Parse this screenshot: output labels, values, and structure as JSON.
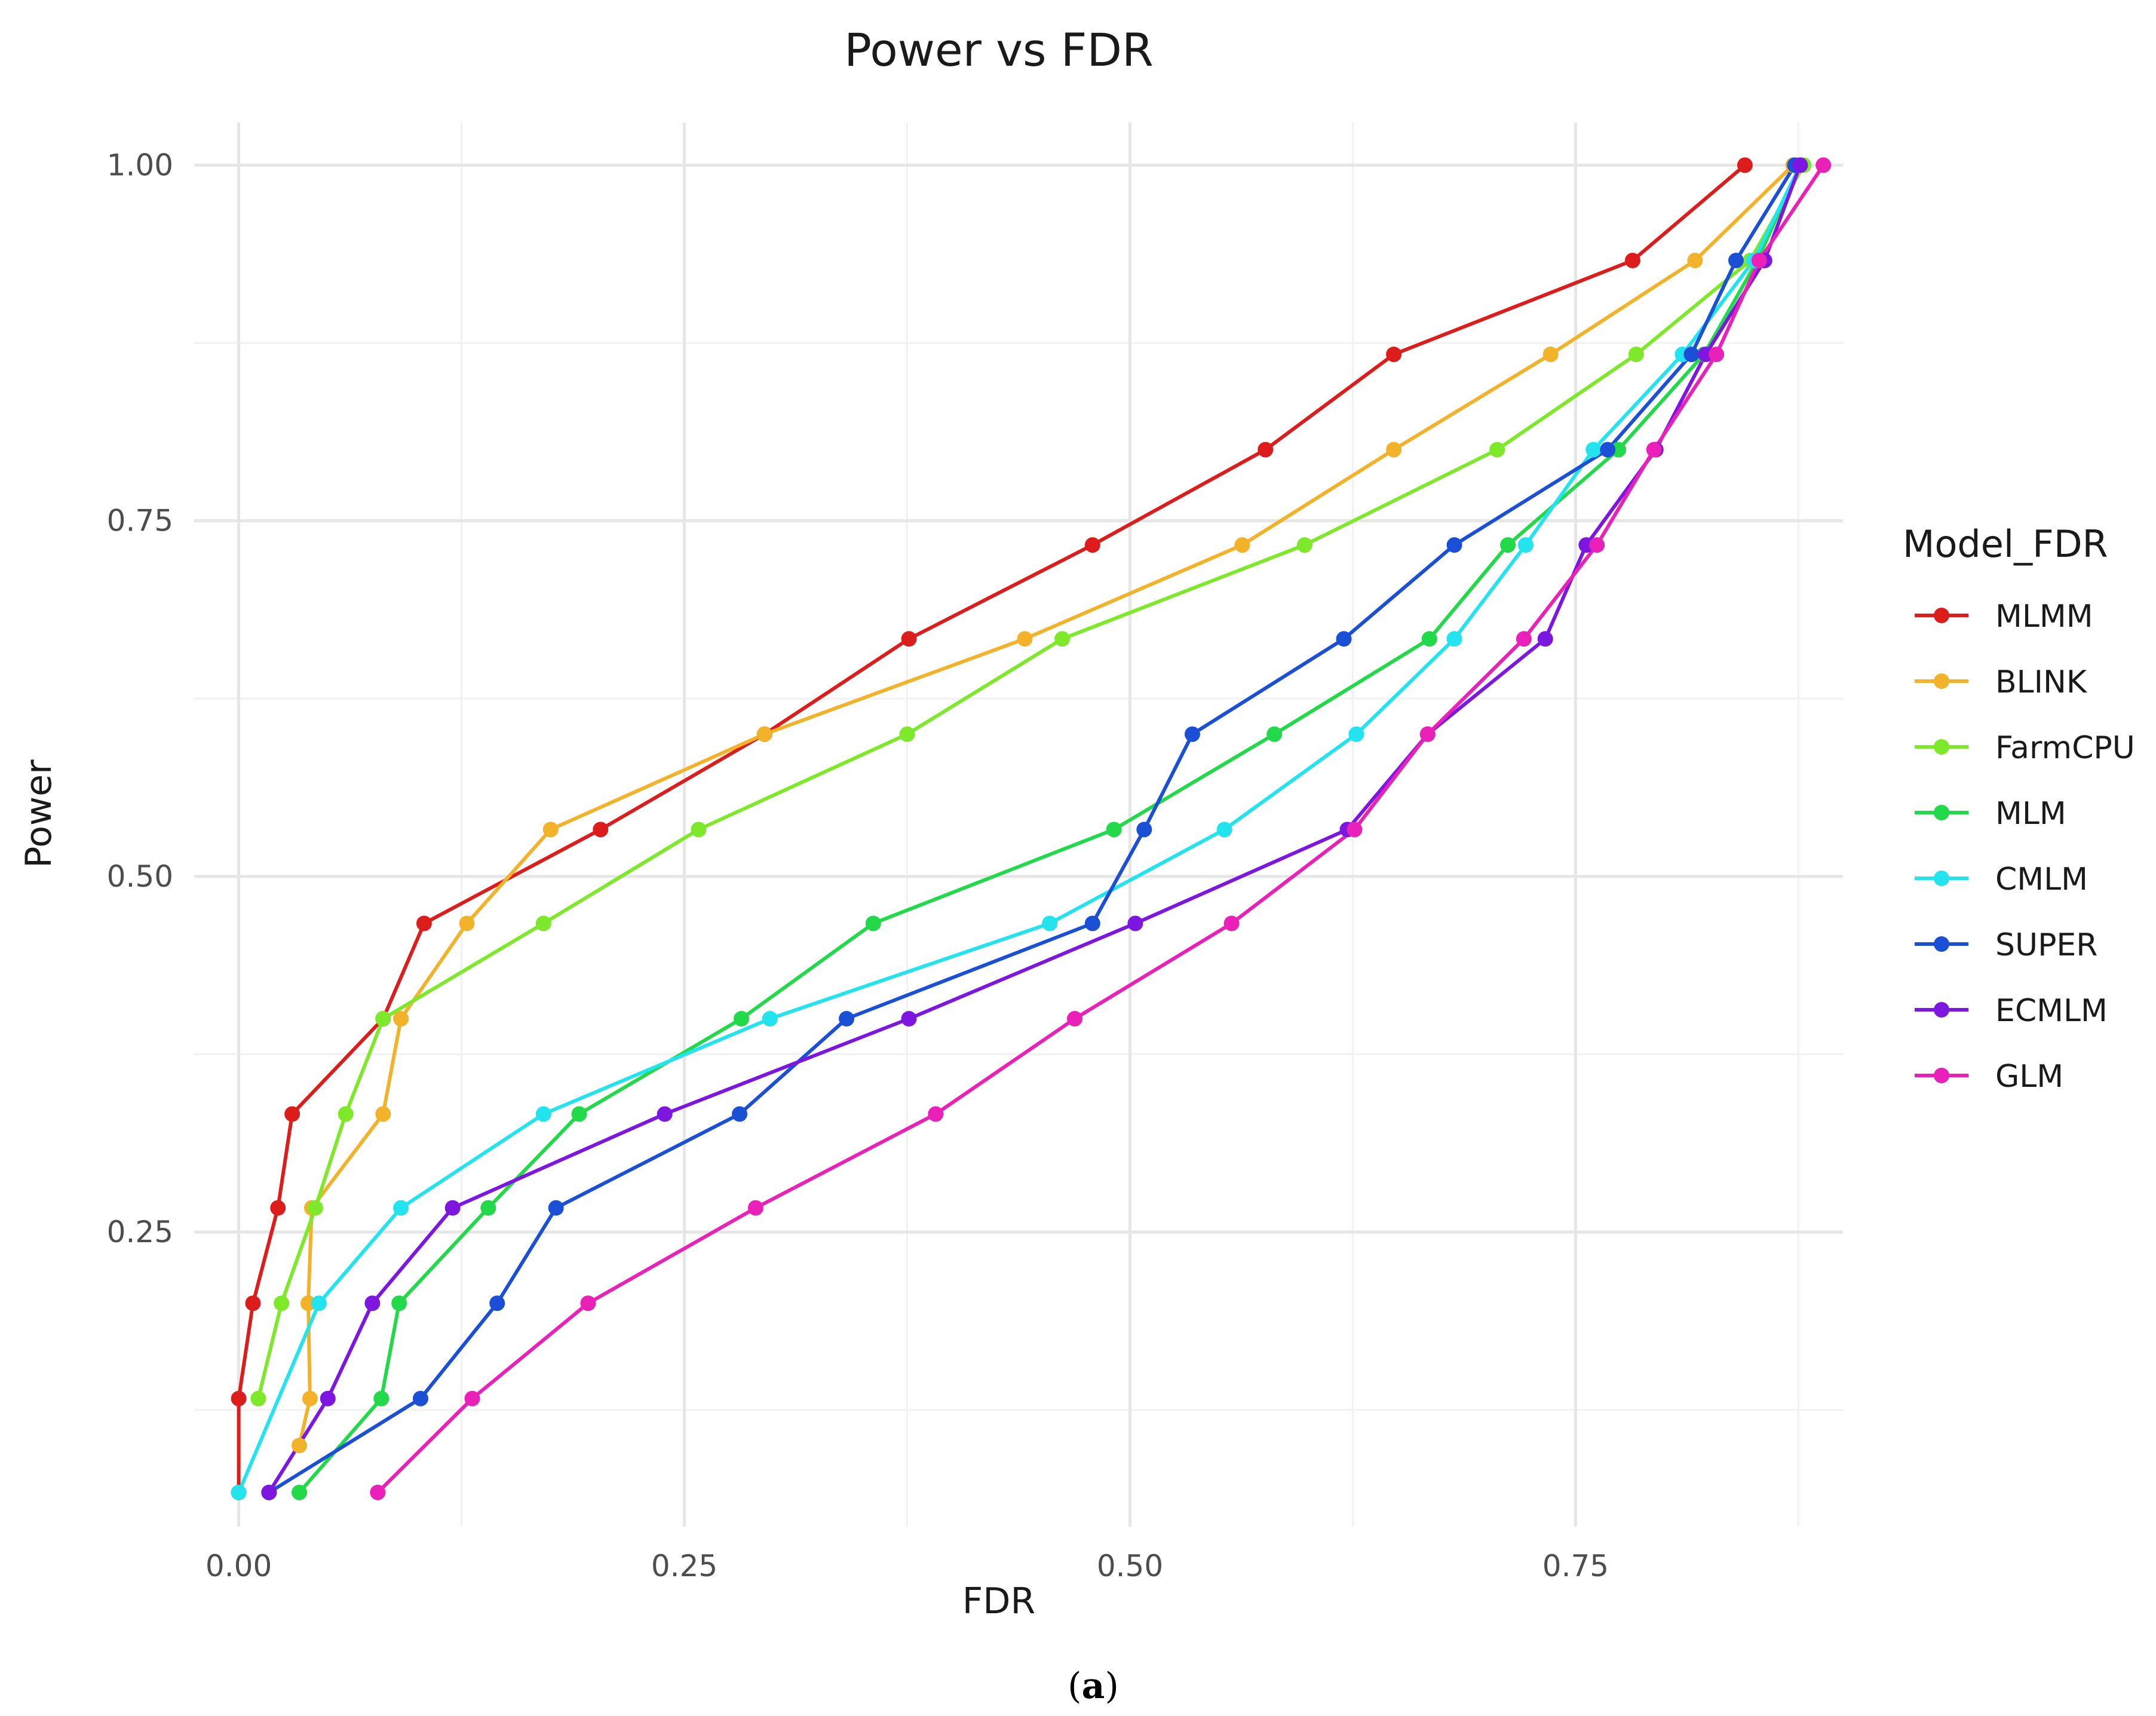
{
  "chart_data": {
    "type": "line",
    "title": "Power vs FDR",
    "xlabel": "FDR",
    "ylabel": "Power",
    "xlim": [
      -0.025,
      0.9
    ],
    "ylim": [
      0.043,
      1.03
    ],
    "xticks": [
      0,
      0.25,
      0.5,
      0.75
    ],
    "xtick_labels": [
      "0.00",
      "0.25",
      "0.50",
      "0.75"
    ],
    "yticks": [
      0.25,
      0.5,
      0.75,
      1.0
    ],
    "ytick_labels": [
      "0.25",
      "0.50",
      "0.75",
      "1.00"
    ],
    "grid": true,
    "legend_title": "Model_FDR",
    "legend_position": "right",
    "caption": {
      "open": "(",
      "letter": "a",
      "close": ")"
    },
    "series": [
      {
        "name": "MLMM",
        "color": "#dd1c1c",
        "points": [
          [
            0.0,
            0.067
          ],
          [
            0.0,
            0.133
          ],
          [
            0.008,
            0.2
          ],
          [
            0.022,
            0.267
          ],
          [
            0.03,
            0.333
          ],
          [
            0.081,
            0.4
          ],
          [
            0.104,
            0.467
          ],
          [
            0.203,
            0.533
          ],
          [
            0.295,
            0.6
          ],
          [
            0.376,
            0.667
          ],
          [
            0.479,
            0.733
          ],
          [
            0.576,
            0.8
          ],
          [
            0.648,
            0.867
          ],
          [
            0.782,
            0.933
          ],
          [
            0.845,
            1.0
          ]
        ]
      },
      {
        "name": "BLINK",
        "color": "#f2b229",
        "points": [
          [
            0.034,
            0.1
          ],
          [
            0.04,
            0.133
          ],
          [
            0.039,
            0.2
          ],
          [
            0.041,
            0.267
          ],
          [
            0.081,
            0.333
          ],
          [
            0.091,
            0.4
          ],
          [
            0.128,
            0.467
          ],
          [
            0.175,
            0.533
          ],
          [
            0.295,
            0.6
          ],
          [
            0.441,
            0.667
          ],
          [
            0.563,
            0.733
          ],
          [
            0.648,
            0.8
          ],
          [
            0.736,
            0.867
          ],
          [
            0.817,
            0.933
          ],
          [
            0.872,
            1.0
          ]
        ]
      },
      {
        "name": "FarmCPU",
        "color": "#7ee82a",
        "points": [
          [
            0.011,
            0.133
          ],
          [
            0.024,
            0.2
          ],
          [
            0.043,
            0.267
          ],
          [
            0.06,
            0.333
          ],
          [
            0.081,
            0.4
          ],
          [
            0.171,
            0.467
          ],
          [
            0.258,
            0.533
          ],
          [
            0.375,
            0.6
          ],
          [
            0.462,
            0.667
          ],
          [
            0.598,
            0.733
          ],
          [
            0.706,
            0.8
          ],
          [
            0.784,
            0.867
          ],
          [
            0.848,
            0.933
          ],
          [
            0.878,
            1.0
          ]
        ]
      },
      {
        "name": "MLM",
        "color": "#22d94a",
        "points": [
          [
            0.034,
            0.067
          ],
          [
            0.08,
            0.133
          ],
          [
            0.09,
            0.2
          ],
          [
            0.14,
            0.267
          ],
          [
            0.191,
            0.333
          ],
          [
            0.282,
            0.4
          ],
          [
            0.356,
            0.467
          ],
          [
            0.491,
            0.533
          ],
          [
            0.581,
            0.6
          ],
          [
            0.668,
            0.667
          ],
          [
            0.712,
            0.733
          ],
          [
            0.774,
            0.8
          ],
          [
            0.822,
            0.867
          ],
          [
            0.852,
            0.933
          ],
          [
            0.876,
            1.0
          ]
        ]
      },
      {
        "name": "CMLM",
        "color": "#22e3ee",
        "points": [
          [
            0.0,
            0.067
          ],
          [
            0.045,
            0.2
          ],
          [
            0.091,
            0.267
          ],
          [
            0.171,
            0.333
          ],
          [
            0.298,
            0.4
          ],
          [
            0.455,
            0.467
          ],
          [
            0.553,
            0.533
          ],
          [
            0.627,
            0.6
          ],
          [
            0.682,
            0.667
          ],
          [
            0.722,
            0.733
          ],
          [
            0.76,
            0.8
          ],
          [
            0.81,
            0.867
          ],
          [
            0.85,
            0.933
          ],
          [
            0.876,
            1.0
          ]
        ]
      },
      {
        "name": "SUPER",
        "color": "#1a4fd6",
        "points": [
          [
            0.017,
            0.067
          ],
          [
            0.102,
            0.133
          ],
          [
            0.145,
            0.2
          ],
          [
            0.178,
            0.267
          ],
          [
            0.281,
            0.333
          ],
          [
            0.341,
            0.4
          ],
          [
            0.479,
            0.467
          ],
          [
            0.508,
            0.533
          ],
          [
            0.535,
            0.6
          ],
          [
            0.62,
            0.667
          ],
          [
            0.682,
            0.733
          ],
          [
            0.768,
            0.8
          ],
          [
            0.815,
            0.867
          ],
          [
            0.84,
            0.933
          ],
          [
            0.873,
            1.0
          ]
        ]
      },
      {
        "name": "ECMLM",
        "color": "#7d17e0",
        "points": [
          [
            0.017,
            0.067
          ],
          [
            0.05,
            0.133
          ],
          [
            0.075,
            0.2
          ],
          [
            0.12,
            0.267
          ],
          [
            0.239,
            0.333
          ],
          [
            0.376,
            0.4
          ],
          [
            0.503,
            0.467
          ],
          [
            0.622,
            0.533
          ],
          [
            0.667,
            0.6
          ],
          [
            0.733,
            0.667
          ],
          [
            0.756,
            0.733
          ],
          [
            0.795,
            0.8
          ],
          [
            0.823,
            0.867
          ],
          [
            0.856,
            0.933
          ],
          [
            0.876,
            1.0
          ]
        ]
      },
      {
        "name": "GLM",
        "color": "#ea21b8",
        "points": [
          [
            0.078,
            0.067
          ],
          [
            0.131,
            0.133
          ],
          [
            0.196,
            0.2
          ],
          [
            0.29,
            0.267
          ],
          [
            0.391,
            0.333
          ],
          [
            0.469,
            0.4
          ],
          [
            0.557,
            0.467
          ],
          [
            0.626,
            0.533
          ],
          [
            0.667,
            0.6
          ],
          [
            0.721,
            0.667
          ],
          [
            0.762,
            0.733
          ],
          [
            0.794,
            0.8
          ],
          [
            0.829,
            0.867
          ],
          [
            0.853,
            0.933
          ],
          [
            0.889,
            1.0
          ]
        ]
      }
    ]
  }
}
